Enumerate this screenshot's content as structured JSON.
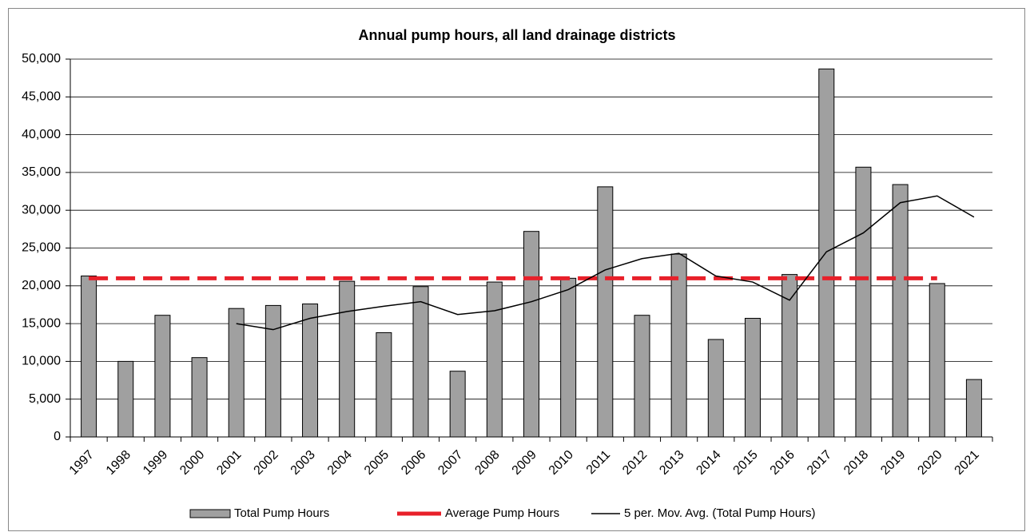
{
  "chart_data": {
    "type": "bar",
    "title": "Annual pump hours, all land drainage districts",
    "categories": [
      "1997",
      "1998",
      "1999",
      "2000",
      "2001",
      "2002",
      "2003",
      "2004",
      "2005",
      "2006",
      "2007",
      "2008",
      "2009",
      "2010",
      "2011",
      "2012",
      "2013",
      "2014",
      "2015",
      "2016",
      "2017",
      "2018",
      "2019",
      "2020",
      "2021"
    ],
    "series": [
      {
        "name": "Total Pump Hours",
        "type": "bar",
        "color": "#a0a0a0",
        "values": [
          21300,
          10000,
          16100,
          10500,
          17000,
          17400,
          17600,
          20600,
          13800,
          19900,
          8700,
          20500,
          27200,
          21000,
          33100,
          16100,
          24200,
          12900,
          15700,
          21500,
          48700,
          35700,
          33400,
          20300,
          7600
        ]
      },
      {
        "name": "Average Pump Hours",
        "type": "line",
        "dashed": true,
        "color": "#e8202a",
        "values": [
          21000,
          21000,
          21000,
          21000,
          21000,
          21000,
          21000,
          21000,
          21000,
          21000,
          21000,
          21000,
          21000,
          21000,
          21000,
          21000,
          21000,
          21000,
          21000,
          21000,
          21000,
          21000,
          21000,
          21000,
          null
        ]
      },
      {
        "name": "5 per. Mov. Avg. (Total Pump Hours)",
        "type": "line",
        "dashed": false,
        "color": "#000000",
        "values": [
          null,
          null,
          null,
          null,
          15000,
          14200,
          15700,
          16600,
          17300,
          17900,
          16200,
          16700,
          17900,
          19500,
          22100,
          23600,
          24300,
          21300,
          20500,
          18100,
          24500,
          27000,
          31000,
          31900,
          29100
        ]
      }
    ],
    "ylim": [
      0,
      50000
    ],
    "yticks": [
      0,
      {
        "value": 5000,
        "label": "5,000"
      },
      {
        "value": 10000,
        "label": "10,000"
      },
      {
        "value": 15000,
        "label": "15,000"
      },
      {
        "value": 20000,
        "label": "20,000"
      },
      {
        "value": 25000,
        "label": "25,000"
      },
      {
        "value": 30000,
        "label": "30,000"
      },
      {
        "value": 35000,
        "label": "35,000"
      },
      {
        "value": 40000,
        "label": "40,000"
      },
      {
        "value": 45000,
        "label": "45,000"
      },
      {
        "value": 50000,
        "label": "50,000"
      }
    ],
    "grid": true,
    "legend": "bottom"
  }
}
